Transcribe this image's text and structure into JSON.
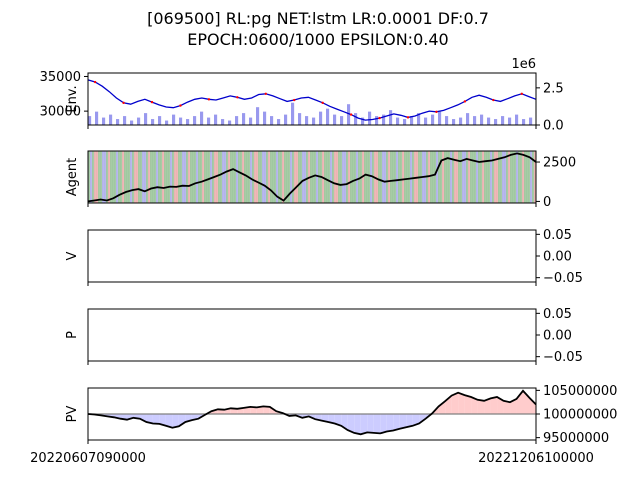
{
  "title_line1": "[069500] RL:pg NET:lstm LR:0.0001 DF:0.7",
  "title_line2": "EPOCH:0600/1000 EPSILON:0.40",
  "x_ticks": [
    "20220607090000",
    "20221206100000"
  ],
  "colors": {
    "env_line": "#0000cc",
    "env_buy_marker": "#ff0000",
    "volume": "#9999ee",
    "agent_line": "#000000",
    "agent_bg_buy": "#e8a0a0",
    "agent_bg_sell": "#88bb88",
    "agent_bg_hold": "#a0a0e8",
    "pv_base": "#808080",
    "pv_gain_fill": "#ffcccc",
    "pv_loss_fill": "#ccccff"
  },
  "chart_data": [
    {
      "name": "Env.",
      "type": "line",
      "ylabel": "Env.",
      "ylim": [
        28000,
        35500
      ],
      "yticks": [
        "35000",
        "30000"
      ],
      "y2_offset_label": "1e6",
      "y2lim": [
        0,
        3.5
      ],
      "y2ticks": [
        "2.5",
        "0.0"
      ],
      "series": [
        {
          "kind": "price",
          "values": [
            34500,
            34200,
            33600,
            32800,
            31900,
            31200,
            31000,
            31400,
            31700,
            31300,
            30900,
            30600,
            30500,
            30800,
            31300,
            31700,
            31900,
            31700,
            31600,
            31900,
            32200,
            32000,
            31700,
            31900,
            32400,
            32500,
            32200,
            31800,
            31400,
            31600,
            31900,
            32000,
            31600,
            31200,
            30700,
            30300,
            29900,
            29500,
            29000,
            28700,
            28800,
            29000,
            29300,
            29600,
            29400,
            29100,
            29300,
            29700,
            30000,
            29900,
            30100,
            30500,
            30900,
            31400,
            32000,
            32300,
            32000,
            31600,
            31400,
            31800,
            32200,
            32500,
            32100,
            31700
          ]
        },
        {
          "kind": "volume",
          "values": [
            0.6,
            0.9,
            0.5,
            0.7,
            0.4,
            0.6,
            0.3,
            0.5,
            0.8,
            0.4,
            0.6,
            0.3,
            0.7,
            0.5,
            0.4,
            0.6,
            0.9,
            0.5,
            0.7,
            0.4,
            0.3,
            0.6,
            0.8,
            0.5,
            1.2,
            0.9,
            0.6,
            0.4,
            0.7,
            1.5,
            0.8,
            0.6,
            0.5,
            0.9,
            1.1,
            0.7,
            0.6,
            1.4,
            0.8,
            0.5,
            0.9,
            0.6,
            0.7,
            1.0,
            0.5,
            0.4,
            0.6,
            0.8,
            0.5,
            0.7,
            0.9,
            0.6,
            0.4,
            0.5,
            0.8,
            0.6,
            0.7,
            0.5,
            0.4,
            0.6,
            0.5,
            0.7,
            0.4,
            0.5
          ]
        }
      ]
    },
    {
      "name": "Agent",
      "type": "line",
      "ylabel": "Agent",
      "ylim": [
        -100,
        3200
      ],
      "yticks": [
        "2500",
        "0"
      ],
      "series": [
        {
          "kind": "agent",
          "values": [
            0,
            60,
            120,
            60,
            200,
            420,
            600,
            720,
            780,
            640,
            820,
            900,
            850,
            940,
            920,
            1000,
            980,
            1150,
            1250,
            1400,
            1550,
            1700,
            1900,
            2050,
            1850,
            1650,
            1400,
            1200,
            1000,
            700,
            300,
            50,
            500,
            900,
            1300,
            1500,
            1650,
            1550,
            1350,
            1150,
            1050,
            1100,
            1300,
            1450,
            1700,
            1600,
            1400,
            1250,
            1300,
            1350,
            1400,
            1450,
            1500,
            1550,
            1600,
            1700,
            2600,
            2750,
            2650,
            2550,
            2700,
            2600,
            2500,
            2550,
            2600,
            2700,
            2800,
            2950,
            3050,
            2950,
            2800,
            2500
          ]
        }
      ]
    },
    {
      "name": "V",
      "type": "line",
      "ylabel": "V",
      "ylim": [
        -0.06,
        0.06
      ],
      "yticks": [
        "0.05",
        "0.00",
        "−0.05"
      ],
      "series": []
    },
    {
      "name": "P",
      "type": "line",
      "ylabel": "P",
      "ylim": [
        -0.06,
        0.06
      ],
      "yticks": [
        "0.05",
        "0.00",
        "−0.05"
      ],
      "series": []
    },
    {
      "name": "PV",
      "type": "area",
      "ylabel": "PV",
      "ylim": [
        94500000,
        105500000
      ],
      "yticks": [
        "105000000",
        "100000000",
        "95000000"
      ],
      "baseline": 100000000,
      "series": [
        {
          "kind": "pv",
          "values": [
            100000000,
            99900000,
            99700000,
            99500000,
            99300000,
            99000000,
            98800000,
            99200000,
            99000000,
            98300000,
            98000000,
            97900000,
            97500000,
            97100000,
            97400000,
            98300000,
            98700000,
            99000000,
            99800000,
            100600000,
            101000000,
            100900000,
            101200000,
            101100000,
            101300000,
            101500000,
            101400000,
            101600000,
            101500000,
            100600000,
            100200000,
            99600000,
            99700000,
            99200000,
            99500000,
            98900000,
            98600000,
            98300000,
            98000000,
            97500000,
            96600000,
            96000000,
            95700000,
            96100000,
            96000000,
            95900000,
            96300000,
            96500000,
            96900000,
            97200000,
            97500000,
            98000000,
            99000000,
            100100000,
            101600000,
            102700000,
            103900000,
            104500000,
            104000000,
            103600000,
            103000000,
            102800000,
            103300000,
            103600000,
            102800000,
            102500000,
            103200000,
            104900000,
            103400000,
            102000000
          ]
        }
      ]
    }
  ]
}
